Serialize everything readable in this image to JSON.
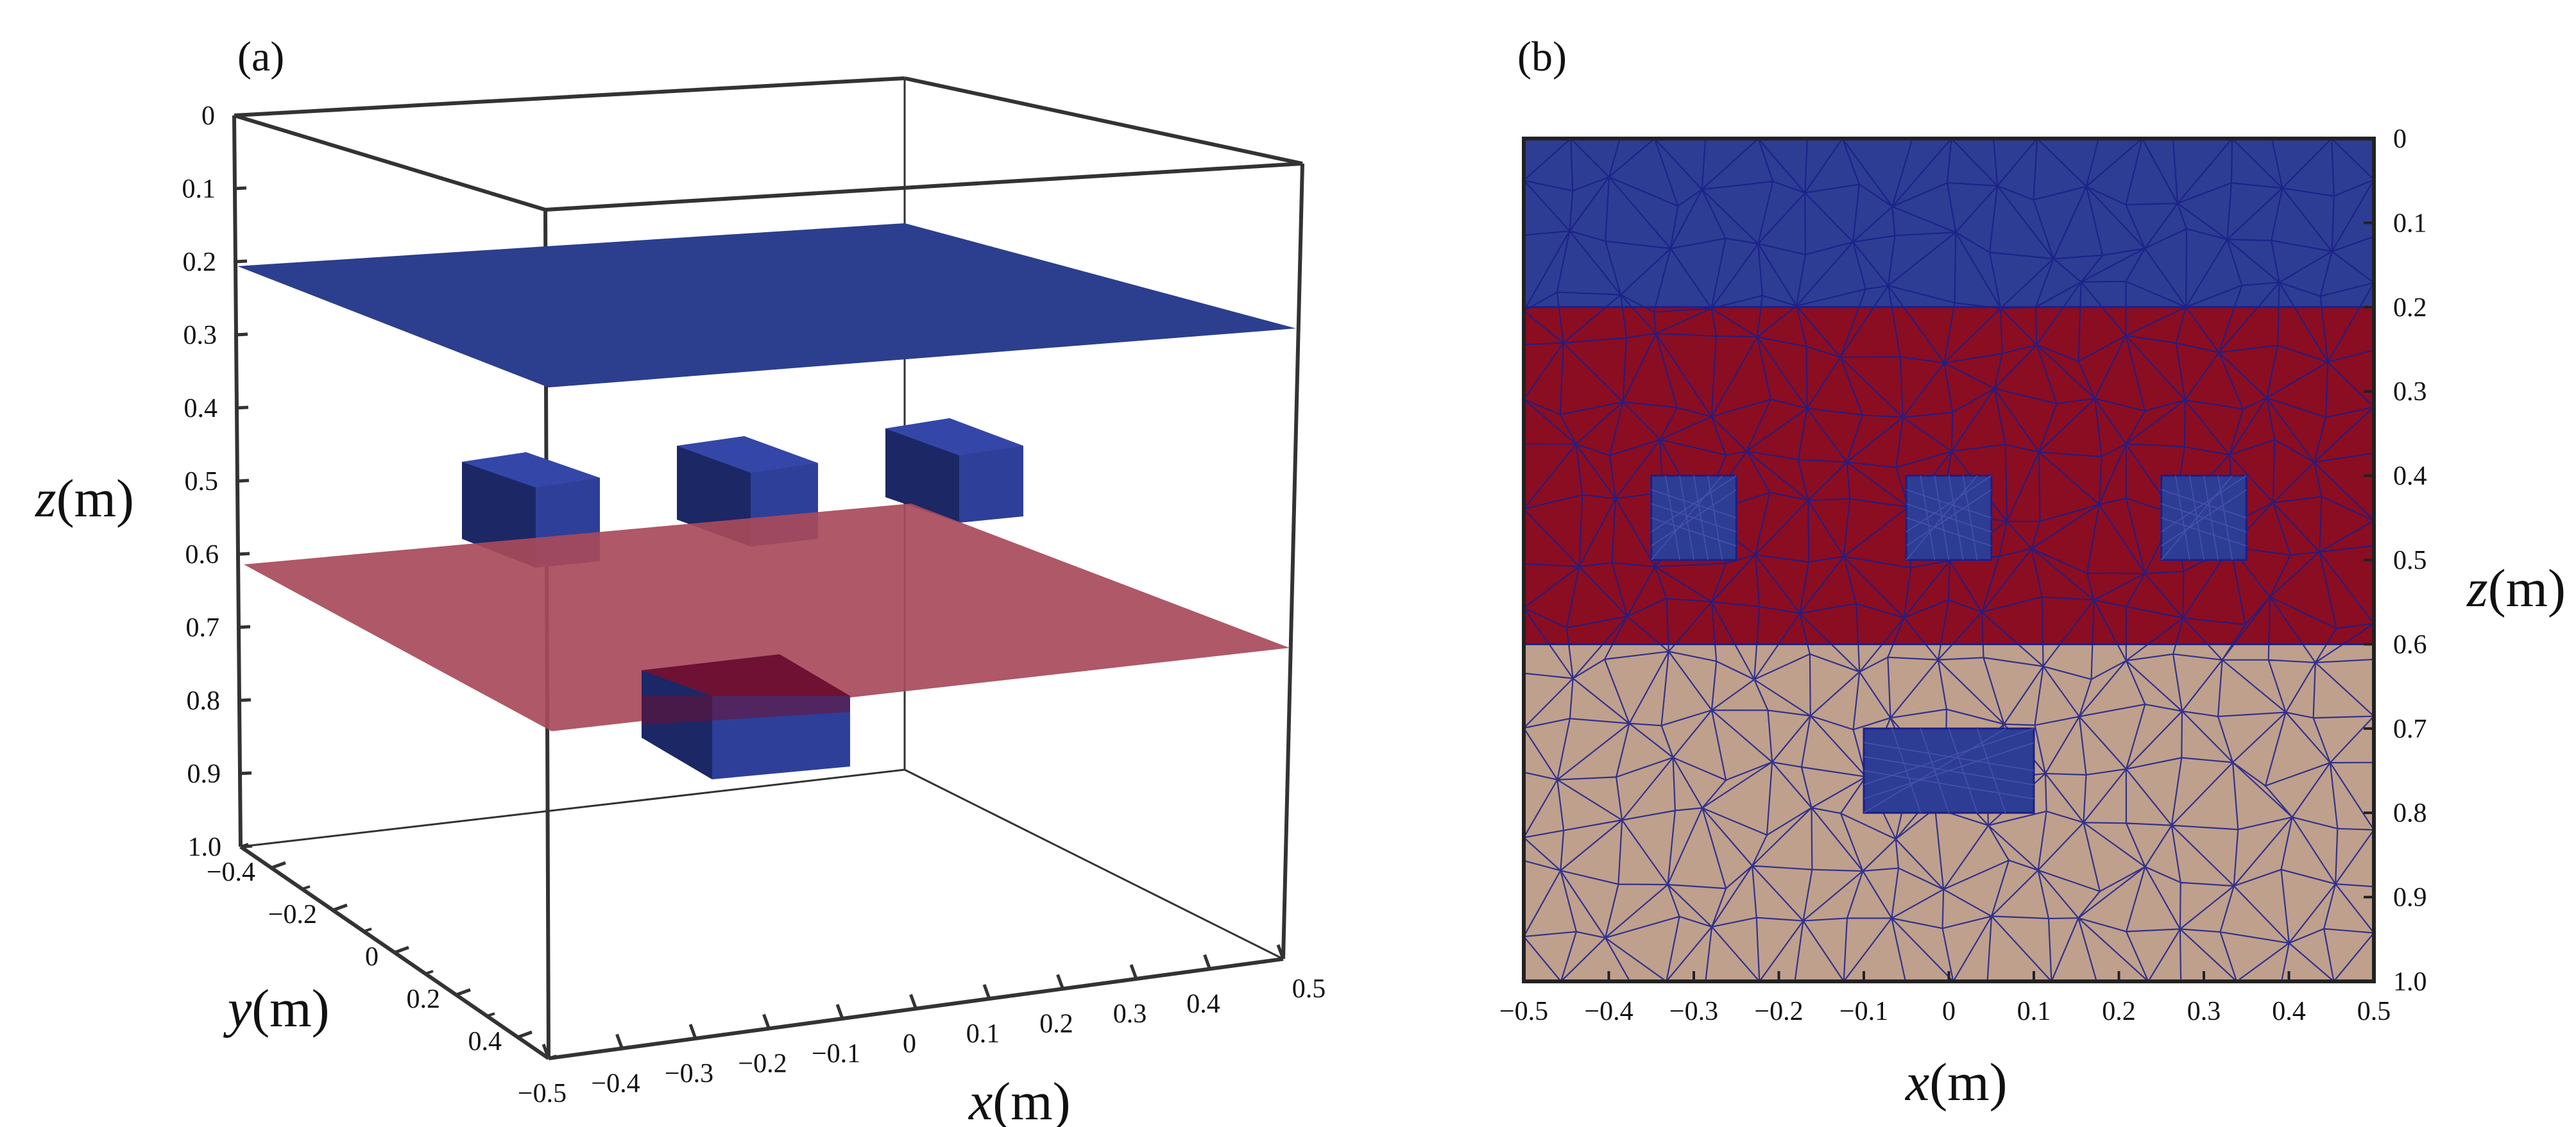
{
  "panel_a": {
    "label": "(a)",
    "z_axis": {
      "label_var": "z",
      "label_unit": "(m)",
      "ticks": [
        "0",
        "0.1",
        "0.2",
        "0.3",
        "0.4",
        "0.5",
        "0.6",
        "0.7",
        "0.8",
        "0.9",
        "1.0"
      ]
    },
    "y_axis": {
      "label_var": "y",
      "label_unit": "(m)",
      "ticks": [
        "-0.4",
        "-0.2",
        "0",
        "0.2",
        "0.4"
      ]
    },
    "x_axis": {
      "label_var": "x",
      "label_unit": "(m)",
      "ticks": [
        "-0.5",
        "-0.4",
        "-0.3",
        "-0.2",
        "-0.1",
        "0",
        "0.1",
        "0.2",
        "0.3",
        "0.4",
        "0.5"
      ]
    },
    "colors": {
      "upper_plane": "#2c3e8e",
      "lower_plane": "#a84a5a",
      "block": "#2e3f9a",
      "block_dark": "#1c2766",
      "block_red": "#6e1132"
    }
  },
  "panel_b": {
    "label": "(b)",
    "z_axis": {
      "label_var": "z",
      "label_unit": "(m)",
      "ticks": [
        "0",
        "0.1",
        "0.2",
        "0.3",
        "0.4",
        "0.5",
        "0.6",
        "0.7",
        "0.8",
        "0.9",
        "1.0"
      ]
    },
    "x_axis": {
      "label_var": "x",
      "label_unit": "(m)",
      "ticks": [
        "-0.5",
        "-0.4",
        "-0.3",
        "-0.2",
        "-0.1",
        "0",
        "0.1",
        "0.2",
        "0.3",
        "0.4",
        "0.5"
      ]
    },
    "layers": [
      {
        "name": "top",
        "z0": 0.0,
        "z1": 0.2,
        "color": "#2d3d93"
      },
      {
        "name": "middle",
        "z0": 0.2,
        "z1": 0.6,
        "color": "#8b0d22"
      },
      {
        "name": "bottom",
        "z0": 0.6,
        "z1": 1.0,
        "color": "#bfa08d"
      }
    ],
    "inclusions": [
      {
        "x0": -0.35,
        "x1": -0.25,
        "z0": 0.4,
        "z1": 0.5
      },
      {
        "x0": -0.05,
        "x1": 0.05,
        "z0": 0.4,
        "z1": 0.5
      },
      {
        "x0": 0.25,
        "x1": 0.35,
        "z0": 0.4,
        "z1": 0.5
      },
      {
        "x0": -0.1,
        "x1": 0.1,
        "z0": 0.7,
        "z1": 0.8
      }
    ],
    "colors": {
      "inclusion": "#2d3d93",
      "mesh": "#1a1f8a"
    }
  }
}
